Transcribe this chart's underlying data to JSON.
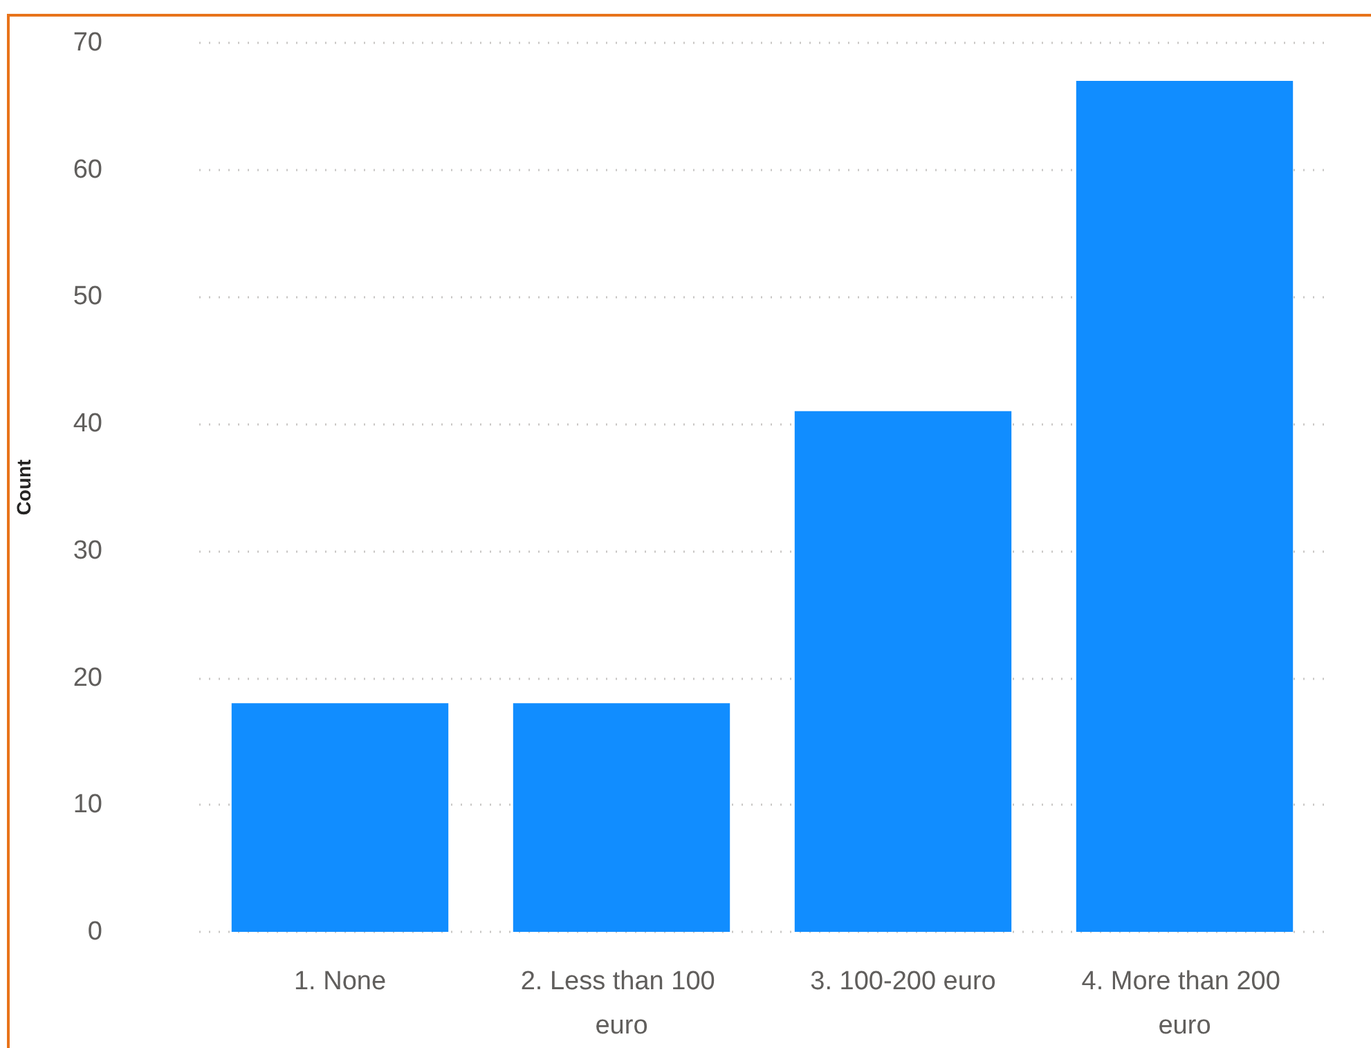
{
  "chart_data": {
    "type": "bar",
    "ylabel": "Count",
    "categories": [
      "1. None",
      "2. Less than 100 euro",
      "3. 100-200 euro",
      "4. More than 200 euro"
    ],
    "values": [
      18,
      18,
      41,
      67
    ],
    "color": "#118dff",
    "ylim": [
      0,
      70
    ],
    "yticks": [
      0,
      10,
      20,
      30,
      40,
      50,
      60,
      70
    ],
    "grid": "y"
  }
}
